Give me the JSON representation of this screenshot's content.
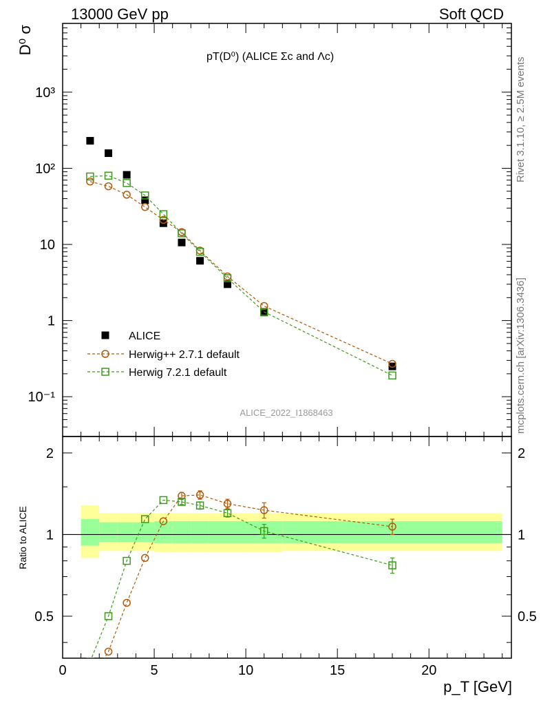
{
  "header": {
    "left": "13000 GeV pp",
    "right": "Soft QCD"
  },
  "side_labels": {
    "top": "Rivet 3.1.10, ≥ 2.5M events",
    "bottom": "mcplots.cern.ch [arXiv:1306.3436]"
  },
  "plot_title": "pT(D⁰) (ALICE Σc and Λc)",
  "watermark": "ALICE_2022_I1868463",
  "colors": {
    "data": "#000000",
    "herwig_pp": "#b35806",
    "herwig7": "#3a9a1a",
    "band_outer": "#ffff99",
    "band_inner": "#99ff99"
  },
  "chart_data": [
    {
      "type": "scatter",
      "role": "main",
      "ylabel": "D⁰ σ",
      "yscale": "log",
      "ylim": [
        0.03,
        8000
      ],
      "xlim": [
        0,
        24.5
      ],
      "yticks": [
        {
          "value": 0.1,
          "label": "10⁻¹"
        },
        {
          "value": 1,
          "label": "1"
        },
        {
          "value": 10,
          "label": "10"
        },
        {
          "value": 100,
          "label": "10²"
        },
        {
          "value": 1000,
          "label": "10³"
        }
      ],
      "legend_position": "lower-left",
      "series": [
        {
          "name": "ALICE",
          "marker": "filled-square",
          "x": [
            1.5,
            2.5,
            3.5,
            4.5,
            5.5,
            6.5,
            7.5,
            9,
            11,
            18
          ],
          "y": [
            230,
            158,
            82,
            38,
            19,
            10.6,
            6.1,
            3.0,
            1.28,
            0.25
          ]
        },
        {
          "name": "Herwig++ 2.7.1 default",
          "marker": "open-circle",
          "x": [
            1.5,
            2.5,
            3.5,
            4.5,
            5.5,
            6.5,
            7.5,
            9,
            11,
            18
          ],
          "y": [
            67,
            58,
            45,
            31,
            21,
            14.5,
            8.3,
            3.8,
            1.55,
            0.27
          ]
        },
        {
          "name": "Herwig 7.2.1 default",
          "marker": "open-square",
          "x": [
            1.5,
            2.5,
            3.5,
            4.5,
            5.5,
            6.5,
            7.5,
            9,
            11,
            18
          ],
          "y": [
            78,
            80,
            64,
            44,
            25,
            14,
            8.0,
            3.6,
            1.3,
            0.19
          ]
        }
      ]
    },
    {
      "type": "scatter",
      "role": "ratio",
      "ylabel": "Ratio to ALICE",
      "xlabel": "p_T [GeV]",
      "xlim": [
        0,
        24.5
      ],
      "ylim": [
        0.35,
        2.3
      ],
      "xticks": [
        0,
        5,
        10,
        15,
        20
      ],
      "yticks": [
        {
          "value": 0.5,
          "label": "0.5"
        },
        {
          "value": 1,
          "label": "1"
        },
        {
          "value": 2,
          "label": "2"
        }
      ],
      "bands": {
        "edges": [
          1,
          2,
          3,
          4,
          5,
          6,
          7,
          8,
          10,
          12,
          24
        ],
        "outer_low": [
          0.82,
          0.87,
          0.87,
          0.87,
          0.86,
          0.86,
          0.86,
          0.86,
          0.86,
          0.87
        ],
        "outer_high": [
          1.28,
          1.2,
          1.2,
          1.2,
          1.2,
          1.2,
          1.2,
          1.2,
          1.2,
          1.2
        ],
        "inner_low": [
          0.91,
          0.94,
          0.94,
          0.94,
          0.93,
          0.93,
          0.93,
          0.93,
          0.93,
          0.93
        ],
        "inner_high": [
          1.14,
          1.11,
          1.11,
          1.11,
          1.12,
          1.12,
          1.12,
          1.12,
          1.12,
          1.12
        ]
      },
      "series": [
        {
          "name": "Herwig++ 2.7.1 default",
          "marker": "open-circle",
          "x": [
            1.5,
            2.5,
            3.5,
            4.5,
            5.5,
            6.5,
            7.5,
            9,
            11,
            18
          ],
          "y": [
            0.29,
            0.37,
            0.56,
            0.82,
            1.12,
            1.39,
            1.4,
            1.3,
            1.23,
            1.07
          ],
          "err": [
            0,
            0,
            0,
            0,
            0,
            0.04,
            0.05,
            0.05,
            0.08,
            0.07
          ]
        },
        {
          "name": "Herwig 7.2.1 default",
          "marker": "open-square",
          "x": [
            1.5,
            2.5,
            3.5,
            4.5,
            5.5,
            6.5,
            7.5,
            9,
            11,
            18
          ],
          "y": [
            0.34,
            0.5,
            0.8,
            1.14,
            1.34,
            1.32,
            1.28,
            1.2,
            1.03,
            0.77
          ],
          "err": [
            0,
            0,
            0,
            0,
            0,
            0.03,
            0.04,
            0.04,
            0.06,
            0.05
          ]
        }
      ]
    }
  ]
}
